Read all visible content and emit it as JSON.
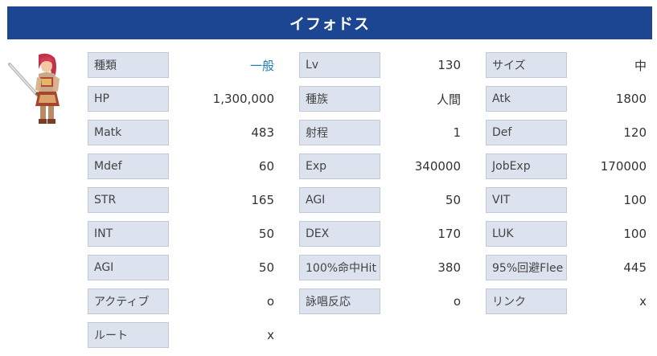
{
  "title": "イフォドス",
  "sprite_icon": "monster-sprite-icon",
  "colors": {
    "title_bg": "#1c4592",
    "label_bg": "#dce3ef",
    "link": "#1d7fa9"
  },
  "columns": [
    [
      {
        "key": "種類",
        "value": "一般",
        "link": true
      },
      {
        "key": "HP",
        "value": "1,300,000"
      },
      {
        "key": "Matk",
        "value": "483"
      },
      {
        "key": "Mdef",
        "value": "60"
      },
      {
        "key": "STR",
        "value": "165"
      },
      {
        "key": "INT",
        "value": "50"
      },
      {
        "key": "AGI",
        "value": "50"
      },
      {
        "key": "アクティブ",
        "value": "o"
      },
      {
        "key": "ルート",
        "value": "x"
      }
    ],
    [
      {
        "key": "Lv",
        "value": "130"
      },
      {
        "key": "種族",
        "value": "人間"
      },
      {
        "key": "射程",
        "value": "1"
      },
      {
        "key": "Exp",
        "value": "340000"
      },
      {
        "key": "AGI",
        "value": "50"
      },
      {
        "key": "DEX",
        "value": "170"
      },
      {
        "key": "100%命中Hit",
        "value": "380"
      },
      {
        "key": "詠唱反応",
        "value": "o"
      }
    ],
    [
      {
        "key": "サイズ",
        "value": "中"
      },
      {
        "key": "Atk",
        "value": "1800"
      },
      {
        "key": "Def",
        "value": "120"
      },
      {
        "key": "JobExp",
        "value": "170000"
      },
      {
        "key": "VIT",
        "value": "100"
      },
      {
        "key": "LUK",
        "value": "100"
      },
      {
        "key": "95%回避Flee",
        "value": "445"
      },
      {
        "key": "リンク",
        "value": "x"
      }
    ]
  ]
}
